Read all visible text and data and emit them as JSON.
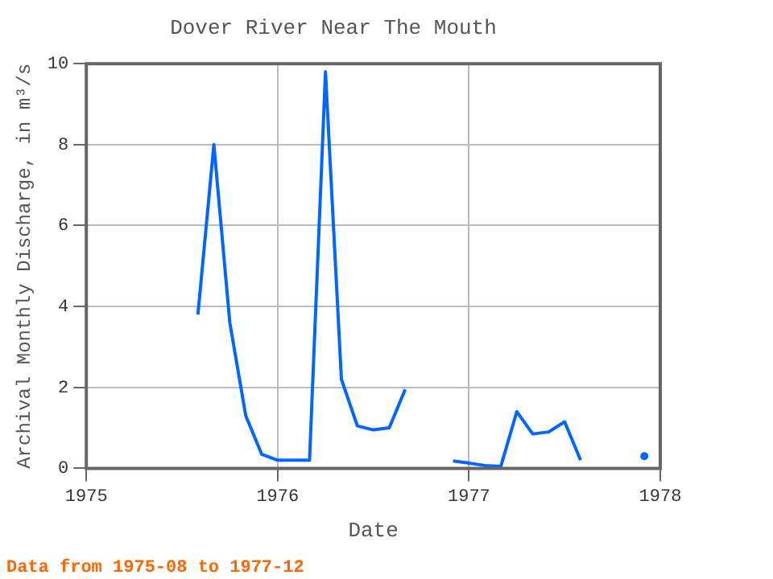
{
  "chart_data": {
    "type": "line",
    "title": "Dover River Near The Mouth",
    "xlabel": "Date",
    "ylabel": "Archival Monthly Discharge, in m³/s",
    "annotations": [
      "Data from 1975-08 to 1977-12"
    ],
    "x": [
      "1975-08",
      "1975-09",
      "1975-10",
      "1975-11",
      "1975-12",
      "1976-01",
      "1976-02",
      "1976-03",
      "1976-04",
      "1976-05",
      "1976-06",
      "1976-07",
      "1976-08",
      "1976-09",
      "1976-10",
      "1976-11",
      "1976-12",
      "1977-01",
      "1977-02",
      "1977-03",
      "1977-04",
      "1977-05",
      "1977-06",
      "1977-07",
      "1977-08",
      "1977-09",
      "1977-10",
      "1977-11",
      "1977-12"
    ],
    "series": [
      {
        "color": "#0066ff",
        "values": [
          3.8,
          8.0,
          3.6,
          1.3,
          0.35,
          0.2,
          0.2,
          0.2,
          9.8,
          2.2,
          1.05,
          0.95,
          1.0,
          1.95,
          null,
          null,
          0.18,
          0.13,
          0.07,
          0.05,
          1.4,
          0.85,
          0.9,
          1.15,
          0.2,
          null,
          null,
          null,
          0.3
        ]
      }
    ],
    "xlim": [
      "1975",
      "1978"
    ],
    "xticks": [
      "1975",
      "1976",
      "1977",
      "1978"
    ],
    "ylim": [
      0,
      10
    ],
    "yticks": [
      0,
      2,
      4,
      6,
      8,
      10
    ],
    "grid": true,
    "legend": false,
    "line_style": "solid"
  }
}
